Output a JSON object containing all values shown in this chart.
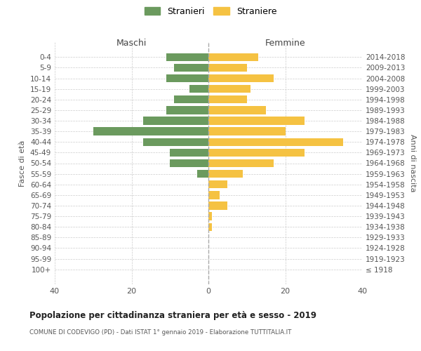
{
  "age_groups": [
    "0-4",
    "5-9",
    "10-14",
    "15-19",
    "20-24",
    "25-29",
    "30-34",
    "35-39",
    "40-44",
    "45-49",
    "50-54",
    "55-59",
    "60-64",
    "65-69",
    "70-74",
    "75-79",
    "80-84",
    "85-89",
    "90-94",
    "95-99",
    "100+"
  ],
  "birth_years": [
    "2014-2018",
    "2009-2013",
    "2004-2008",
    "1999-2003",
    "1994-1998",
    "1989-1993",
    "1984-1988",
    "1979-1983",
    "1974-1978",
    "1969-1973",
    "1964-1968",
    "1959-1963",
    "1954-1958",
    "1949-1953",
    "1944-1948",
    "1939-1943",
    "1934-1938",
    "1929-1933",
    "1924-1928",
    "1919-1923",
    "≤ 1918"
  ],
  "males": [
    11,
    9,
    11,
    5,
    9,
    11,
    17,
    30,
    17,
    10,
    10,
    3,
    0,
    0,
    0,
    0,
    0,
    0,
    0,
    0,
    0
  ],
  "females": [
    13,
    10,
    17,
    11,
    10,
    15,
    25,
    20,
    35,
    25,
    17,
    9,
    5,
    3,
    5,
    1,
    1,
    0,
    0,
    0,
    0
  ],
  "male_color": "#6b9a5e",
  "female_color": "#f5c242",
  "title": "Popolazione per cittadinanza straniera per età e sesso - 2019",
  "subtitle": "COMUNE DI CODEVIGO (PD) - Dati ISTAT 1° gennaio 2019 - Elaborazione TUTTITALIA.IT",
  "ylabel_left": "Fasce di età",
  "ylabel_right": "Anni di nascita",
  "xlabel_left": "Maschi",
  "xlabel_right": "Femmine",
  "legend_male": "Stranieri",
  "legend_female": "Straniere",
  "xlim": 40,
  "background_color": "#ffffff",
  "grid_color": "#cccccc"
}
